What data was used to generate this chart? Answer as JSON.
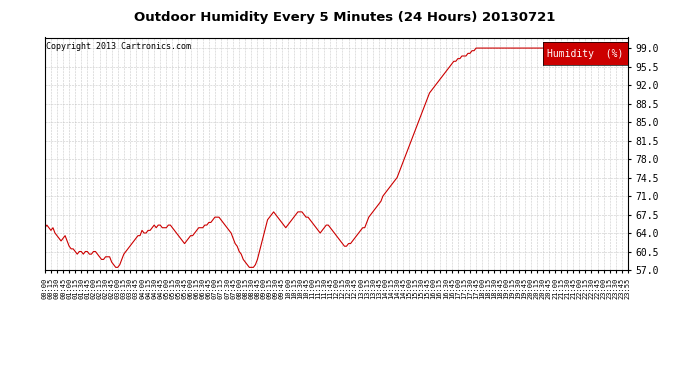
{
  "title": "Outdoor Humidity Every 5 Minutes (24 Hours) 20130721",
  "copyright": "Copyright 2013 Cartronics.com",
  "line_color": "#cc0000",
  "background_color": "#ffffff",
  "grid_color": "#bbbbbb",
  "ylim": [
    57.0,
    101.0
  ],
  "yticks": [
    57.0,
    60.5,
    64.0,
    67.5,
    71.0,
    74.5,
    78.0,
    81.5,
    85.0,
    88.5,
    92.0,
    95.5,
    99.0
  ],
  "legend_label": "Humidity  (%)",
  "legend_bg": "#cc0000",
  "legend_text_color": "#ffffff",
  "humidity_values": [
    65.0,
    65.5,
    65.0,
    64.5,
    65.0,
    64.0,
    63.5,
    63.0,
    62.5,
    63.0,
    63.5,
    62.5,
    61.5,
    61.0,
    61.0,
    60.5,
    60.0,
    60.5,
    60.5,
    60.0,
    60.5,
    60.5,
    60.0,
    60.0,
    60.5,
    60.5,
    60.0,
    59.5,
    59.0,
    59.0,
    59.5,
    59.5,
    59.5,
    58.5,
    58.0,
    57.5,
    57.5,
    58.0,
    59.0,
    60.0,
    60.5,
    61.0,
    61.5,
    62.0,
    62.5,
    63.0,
    63.5,
    63.5,
    64.5,
    64.0,
    64.0,
    64.5,
    64.5,
    65.0,
    65.5,
    65.0,
    65.5,
    65.5,
    65.0,
    65.0,
    65.0,
    65.5,
    65.5,
    65.0,
    64.5,
    64.0,
    63.5,
    63.0,
    62.5,
    62.0,
    62.5,
    63.0,
    63.5,
    63.5,
    64.0,
    64.5,
    65.0,
    65.0,
    65.0,
    65.5,
    65.5,
    66.0,
    66.0,
    66.5,
    67.0,
    67.0,
    67.0,
    66.5,
    66.0,
    65.5,
    65.0,
    64.5,
    64.0,
    63.0,
    62.0,
    61.5,
    60.5,
    60.0,
    59.0,
    58.5,
    58.0,
    57.5,
    57.5,
    57.5,
    58.0,
    59.0,
    60.5,
    62.0,
    63.5,
    65.0,
    66.5,
    67.0,
    67.5,
    68.0,
    67.5,
    67.0,
    66.5,
    66.0,
    65.5,
    65.0,
    65.5,
    66.0,
    66.5,
    67.0,
    67.5,
    68.0,
    68.0,
    68.0,
    67.5,
    67.0,
    67.0,
    66.5,
    66.0,
    65.5,
    65.0,
    64.5,
    64.0,
    64.5,
    65.0,
    65.5,
    65.5,
    65.0,
    64.5,
    64.0,
    63.5,
    63.0,
    62.5,
    62.0,
    61.5,
    61.5,
    62.0,
    62.0,
    62.5,
    63.0,
    63.5,
    64.0,
    64.5,
    65.0,
    65.0,
    66.0,
    67.0,
    67.5,
    68.0,
    68.5,
    69.0,
    69.5,
    70.0,
    71.0,
    71.5,
    72.0,
    72.5,
    73.0,
    73.5,
    74.0,
    74.5,
    75.5,
    76.5,
    77.5,
    78.5,
    79.5,
    80.5,
    81.5,
    82.5,
    83.5,
    84.5,
    85.5,
    86.5,
    87.5,
    88.5,
    89.5,
    90.5,
    91.0,
    91.5,
    92.0,
    92.5,
    93.0,
    93.5,
    94.0,
    94.5,
    95.0,
    95.5,
    96.0,
    96.5,
    96.5,
    97.0,
    97.0,
    97.5,
    97.5,
    97.5,
    98.0,
    98.0,
    98.5,
    98.5,
    99.0,
    99.0,
    99.0,
    99.0,
    99.0,
    99.0,
    99.0,
    99.0,
    99.0,
    99.0,
    99.0,
    99.0,
    99.0,
    99.0,
    99.0,
    99.0,
    99.0,
    99.0,
    99.0,
    99.0,
    99.0,
    99.0,
    99.0,
    99.0,
    99.0,
    99.0,
    99.0,
    99.0,
    99.0,
    99.0,
    99.0,
    99.0,
    99.0,
    99.0,
    99.0,
    99.0,
    99.0,
    99.0,
    99.0,
    99.0,
    99.0,
    99.0,
    99.0,
    99.0,
    99.0,
    99.0,
    99.0,
    99.0,
    99.0,
    99.0,
    99.0,
    99.0,
    99.0,
    99.0,
    99.0,
    99.0,
    99.0,
    99.0,
    99.0,
    99.0,
    99.0,
    99.0,
    99.0,
    99.0,
    99.0,
    99.0,
    99.0,
    99.0,
    99.0,
    99.0,
    99.0,
    99.0,
    99.0,
    99.0,
    99.0,
    99.0
  ],
  "x_tick_labels": [
    "00:00",
    "00:15",
    "00:30",
    "00:45",
    "01:00",
    "01:15",
    "01:30",
    "01:45",
    "02:00",
    "02:15",
    "02:30",
    "02:45",
    "03:00",
    "03:15",
    "03:30",
    "03:45",
    "04:00",
    "04:15",
    "04:30",
    "04:45",
    "05:00",
    "05:15",
    "05:30",
    "05:45",
    "06:00",
    "06:15",
    "06:30",
    "06:45",
    "07:00",
    "07:15",
    "07:30",
    "07:45",
    "08:00",
    "08:15",
    "08:30",
    "08:45",
    "09:00",
    "09:15",
    "09:30",
    "09:45",
    "10:00",
    "10:15",
    "10:30",
    "10:45",
    "11:00",
    "11:15",
    "11:30",
    "11:45",
    "12:00",
    "12:15",
    "12:30",
    "12:45",
    "13:00",
    "13:15",
    "13:30",
    "13:45",
    "14:00",
    "14:15",
    "14:30",
    "14:45",
    "15:00",
    "15:15",
    "15:30",
    "15:45",
    "16:00",
    "16:15",
    "16:30",
    "16:45",
    "17:00",
    "17:15",
    "17:30",
    "17:45",
    "18:00",
    "18:15",
    "18:30",
    "18:45",
    "19:00",
    "19:15",
    "19:30",
    "19:45",
    "20:00",
    "20:15",
    "20:30",
    "20:45",
    "21:00",
    "21:15",
    "21:30",
    "21:45",
    "22:00",
    "22:15",
    "22:30",
    "22:45",
    "23:00",
    "23:15",
    "23:30",
    "23:45",
    "23:55"
  ]
}
